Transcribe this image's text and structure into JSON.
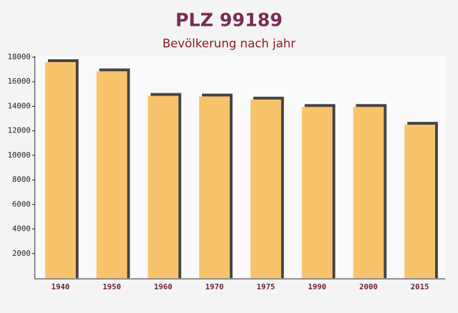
{
  "chart_data": {
    "type": "bar",
    "title": "PLZ 99189",
    "subtitle": "Bevölkerung nach jahr",
    "categories": [
      "1940",
      "1950",
      "1960",
      "1970",
      "1975",
      "1990",
      "2000",
      "2015"
    ],
    "values": [
      17600,
      16850,
      14850,
      14800,
      14550,
      13950,
      13950,
      12500
    ],
    "color": "#f7c46c",
    "ylim": [
      0,
      18000
    ],
    "yticks": [
      2000,
      4000,
      6000,
      8000,
      10000,
      12000,
      14000,
      16000,
      18000
    ]
  }
}
